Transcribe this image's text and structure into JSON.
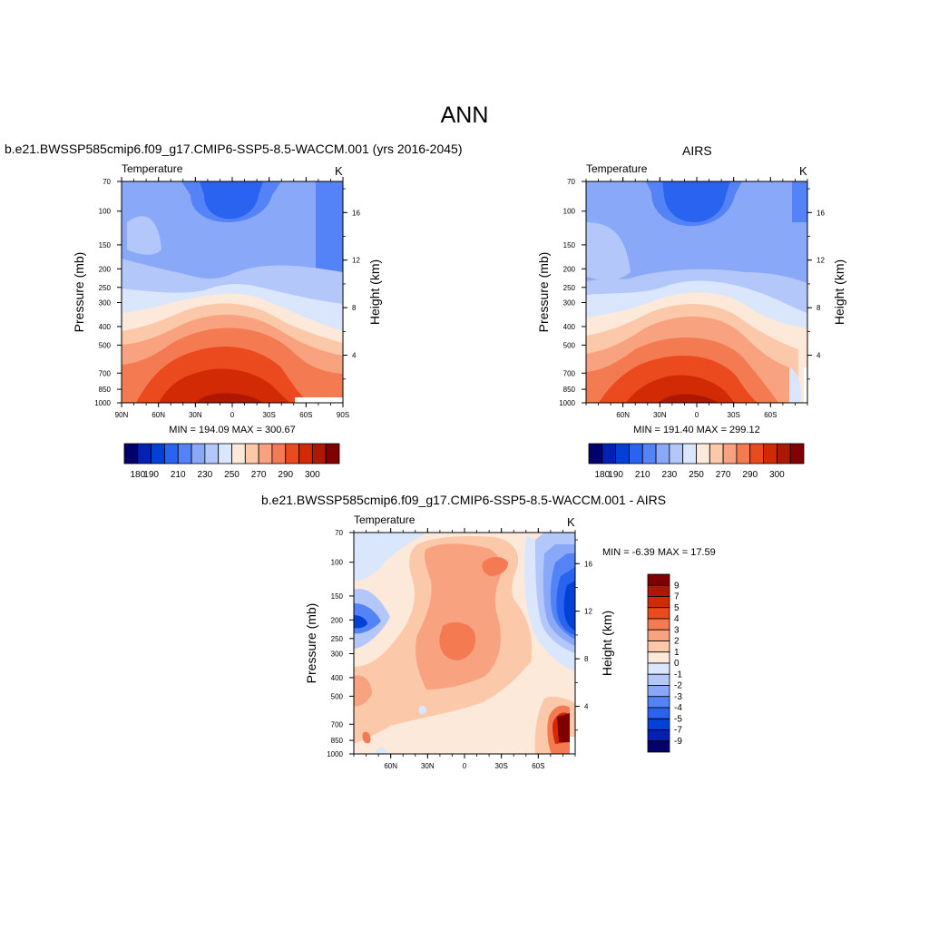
{
  "main_title": "ANN",
  "palette_abs": [
    "#03006b",
    "#0221b3",
    "#0341d6",
    "#2a63f0",
    "#5383f6",
    "#89a9f8",
    "#b4c7fa",
    "#d9e6fc",
    "#fde9da",
    "#fbc9aa",
    "#f9a27f",
    "#f47a52",
    "#eb4a1f",
    "#d22a05",
    "#ad1704",
    "#800000"
  ],
  "palette_diff": [
    "#03006b",
    "#0221b3",
    "#0341d6",
    "#2a63f0",
    "#5383f6",
    "#89a9f8",
    "#b4c7fa",
    "#d9e6fc",
    "#fde9da",
    "#fbc9aa",
    "#f9a27f",
    "#f47a52",
    "#eb4a1f",
    "#d22a05",
    "#ad1704",
    "#800000"
  ],
  "panels": [
    {
      "id": "model",
      "title": "b.e21.BWSSP585cmip6.f09_g17.CMIP6-SSP5-8.5-WACCM.001 (yrs 2016-2045)",
      "left_label": "Temperature",
      "right_label": "K",
      "y_label": "Pressure (mb)",
      "y2_label": "Height (km)",
      "pressure_ticks": [
        "70",
        "100",
        "150",
        "200",
        "250",
        "300",
        "400",
        "500",
        "700",
        "850",
        "1000"
      ],
      "height_ticks": [
        "16",
        "12",
        "8",
        "4"
      ],
      "lat_ticks": [
        "90N",
        "60N",
        "30N",
        "0",
        "30S",
        "60S",
        "90S"
      ],
      "minmax": "MIN = 194.09  MAX = 300.67",
      "colorbar_labels": [
        "180",
        "190",
        "210",
        "230",
        "250",
        "270",
        "290",
        "300"
      ]
    },
    {
      "id": "obs",
      "title": "AIRS",
      "left_label": "Temperature",
      "right_label": "K",
      "y_label": "Pressure (mb)",
      "y2_label": "Height (km)",
      "pressure_ticks": [
        "70",
        "100",
        "150",
        "200",
        "250",
        "300",
        "400",
        "500",
        "700",
        "850",
        "1000"
      ],
      "height_ticks": [
        "16",
        "12",
        "8",
        "4"
      ],
      "lat_ticks": [
        "60N",
        "30N",
        "0",
        "30S",
        "60S"
      ],
      "minmax": "MIN = 191.40  MAX = 299.12",
      "colorbar_labels": [
        "180",
        "190",
        "210",
        "230",
        "250",
        "270",
        "290",
        "300"
      ]
    },
    {
      "id": "diff",
      "title": "b.e21.BWSSP585cmip6.f09_g17.CMIP6-SSP5-8.5-WACCM.001 - AIRS",
      "left_label": "Temperature",
      "right_label": "K",
      "y_label": "Pressure (mb)",
      "y2_label": "Height (km)",
      "pressure_ticks": [
        "70",
        "100",
        "150",
        "200",
        "250",
        "300",
        "400",
        "500",
        "700",
        "850",
        "1000"
      ],
      "height_ticks": [
        "16",
        "12",
        "8",
        "4"
      ],
      "lat_ticks": [
        "60N",
        "30N",
        "0",
        "30S",
        "60S"
      ],
      "minmax": "MIN =  -6.39  MAX =  17.59",
      "colorbar_labels": [
        "9",
        "7",
        "5",
        "4",
        "3",
        "2",
        "1",
        "0",
        "-1",
        "-2",
        "-3",
        "-4",
        "-5",
        "-7",
        "-9"
      ]
    }
  ],
  "chart_data": [
    {
      "type": "heatmap",
      "title": "b.e21.BWSSP585cmip6.f09_g17.CMIP6-SSP5-8.5-WACCM.001 (yrs 2016-2045)",
      "variable": "Temperature",
      "units": "K",
      "xlabel": "",
      "ylabel": "Pressure (mb)",
      "y2label": "Height (km)",
      "x_range": [
        "90N",
        "90S"
      ],
      "y_range_mb": [
        1000,
        70
      ],
      "min": 194.09,
      "max": 300.67,
      "levels": [
        180,
        185,
        190,
        200,
        210,
        220,
        230,
        240,
        250,
        260,
        270,
        280,
        290,
        295,
        300
      ]
    },
    {
      "type": "heatmap",
      "title": "AIRS",
      "variable": "Temperature",
      "units": "K",
      "xlabel": "",
      "ylabel": "Pressure (mb)",
      "y2label": "Height (km)",
      "y_range_mb": [
        1000,
        70
      ],
      "min": 191.4,
      "max": 299.12,
      "levels": [
        180,
        185,
        190,
        200,
        210,
        220,
        230,
        240,
        250,
        260,
        270,
        280,
        290,
        295,
        300
      ]
    },
    {
      "type": "heatmap",
      "title": "b.e21.BWSSP585cmip6.f09_g17.CMIP6-SSP5-8.5-WACCM.001 - AIRS",
      "variable": "Temperature",
      "units": "K",
      "xlabel": "",
      "ylabel": "Pressure (mb)",
      "y2label": "Height (km)",
      "y_range_mb": [
        1000,
        70
      ],
      "min": -6.39,
      "max": 17.59,
      "levels": [
        -9,
        -7,
        -5,
        -4,
        -3,
        -2,
        -1,
        0,
        1,
        2,
        3,
        4,
        5,
        7,
        9
      ]
    }
  ]
}
